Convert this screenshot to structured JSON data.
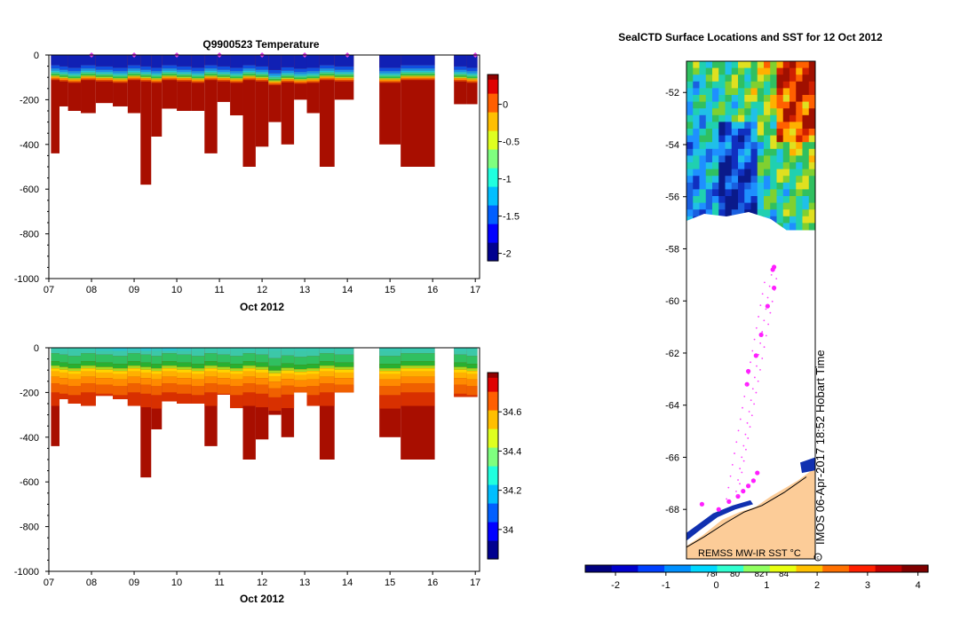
{
  "chart_data": [
    {
      "type": "heatmap",
      "title": "Q9900523  Temperature",
      "xlabel": "Oct 2012",
      "ylabel": "",
      "xlim": [
        7,
        17.1
      ],
      "ylim": [
        -1000,
        0
      ],
      "x_tick_labels": [
        "07",
        "08",
        "09",
        "10",
        "11",
        "12",
        "13",
        "14",
        "15",
        "16",
        "17"
      ],
      "y_tick_labels": [
        "0",
        "-200",
        "-400",
        "-600",
        "-800",
        "-1000"
      ],
      "colorbar": {
        "range": [
          -2.1,
          0.4
        ],
        "tick_labels": [
          "0",
          "-0.5",
          "-1",
          "-1.5",
          "-2"
        ]
      },
      "profiles": [
        {
          "t": 7.2,
          "depth": 440
        },
        {
          "t": 7.3,
          "depth": 230
        },
        {
          "t": 7.6,
          "depth": 250
        },
        {
          "t": 7.9,
          "depth": 260
        },
        {
          "t": 8.3,
          "depth": 215
        },
        {
          "t": 8.7,
          "depth": 230
        },
        {
          "t": 9.0,
          "depth": 260
        },
        {
          "t": 9.3,
          "depth": 580
        },
        {
          "t": 9.5,
          "depth": 365
        },
        {
          "t": 9.8,
          "depth": 240
        },
        {
          "t": 10.2,
          "depth": 250
        },
        {
          "t": 10.5,
          "depth": 250
        },
        {
          "t": 10.8,
          "depth": 440
        },
        {
          "t": 11.1,
          "depth": 210
        },
        {
          "t": 11.4,
          "depth": 270
        },
        {
          "t": 11.7,
          "depth": 500
        },
        {
          "t": 12.0,
          "depth": 410
        },
        {
          "t": 12.3,
          "depth": 300
        },
        {
          "t": 12.6,
          "depth": 400
        },
        {
          "t": 12.9,
          "depth": 200
        },
        {
          "t": 13.2,
          "depth": 260
        },
        {
          "t": 13.5,
          "depth": 500
        },
        {
          "t": 13.9,
          "depth": 200
        },
        {
          "t": 15.0,
          "depth": 400
        },
        {
          "t": 15.5,
          "depth": 500
        },
        {
          "t": 16.6,
          "depth": 220
        },
        {
          "t": 17.0,
          "depth": 220
        }
      ]
    },
    {
      "type": "heatmap",
      "title": "",
      "xlabel": "Oct 2012",
      "ylabel": "",
      "xlim": [
        7,
        17.1
      ],
      "ylim": [
        -1000,
        0
      ],
      "x_tick_labels": [
        "07",
        "08",
        "09",
        "10",
        "11",
        "12",
        "13",
        "14",
        "15",
        "16",
        "17"
      ],
      "y_tick_labels": [
        "0",
        "-200",
        "-400",
        "-600",
        "-800",
        "-1000"
      ],
      "colorbar": {
        "range": [
          33.85,
          34.8
        ],
        "tick_labels": [
          "34.6",
          "34.4",
          "34.2",
          "34"
        ]
      }
    },
    {
      "type": "heatmap",
      "title": "SealCTD Surface Locations and SST for 12 Oct 2012",
      "y_tick_labels": [
        "-52",
        "-54",
        "-56",
        "-58",
        "-60",
        "-62",
        "-64",
        "-66",
        "-68"
      ],
      "ylim": [
        -69.9,
        -50.8
      ],
      "track_points": [
        {
          "lat": -58.7,
          "lon": 0.68
        },
        {
          "lat": -58.8,
          "lon": 0.67
        },
        {
          "lat": -59.5,
          "lon": 0.68
        },
        {
          "lat": -60.2,
          "lon": 0.63
        },
        {
          "lat": -61.3,
          "lon": 0.58
        },
        {
          "lat": -62.1,
          "lon": 0.54
        },
        {
          "lat": -62.7,
          "lon": 0.48
        },
        {
          "lat": -63.2,
          "lon": 0.47
        },
        {
          "lat": -66.6,
          "lon": 0.55
        },
        {
          "lat": -66.9,
          "lon": 0.52
        },
        {
          "lat": -67.1,
          "lon": 0.48
        },
        {
          "lat": -67.3,
          "lon": 0.44
        },
        {
          "lat": -67.5,
          "lon": 0.4
        },
        {
          "lat": -67.7,
          "lon": 0.33
        },
        {
          "lat": -68.0,
          "lon": 0.25
        },
        {
          "lat": -67.8,
          "lon": 0.12
        }
      ],
      "side_label": "IMOS 06-Apr-2017 18:52 Hobart Time",
      "map_label": "REMSS MW-IR SST °C",
      "colorbar": {
        "range": [
          -2.6,
          4.2
        ],
        "tick_labels": [
          "-2",
          "-1",
          "0",
          "1",
          "2",
          "3",
          "4"
        ],
        "inner_labels": [
          "78",
          "80",
          "82",
          "84"
        ]
      }
    }
  ]
}
